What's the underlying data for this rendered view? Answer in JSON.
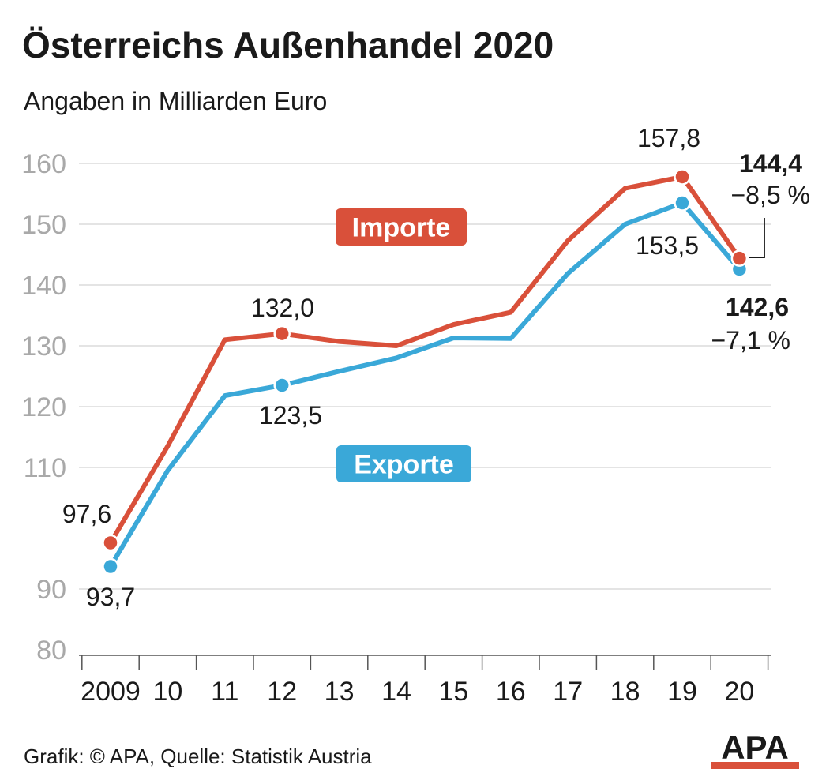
{
  "title": "Österreichs Außenhandel 2020",
  "subtitle": "Angaben in Milliarden Euro",
  "source": "Grafik: © APA, Quelle: Statistik Austria",
  "logo_text": "APA",
  "colors": {
    "imports": "#d9503a",
    "exports": "#3aa8d8",
    "grid": "#dcdcdc",
    "axis": "#555555",
    "tick_text": "#a9a9a9"
  },
  "chart_data": {
    "type": "line",
    "categories": [
      "2009",
      "10",
      "11",
      "12",
      "13",
      "14",
      "15",
      "16",
      "17",
      "18",
      "19",
      "20"
    ],
    "ylim": [
      80,
      160
    ],
    "yticks": [
      80,
      90,
      110,
      120,
      130,
      140,
      150,
      160
    ],
    "grid": true,
    "series": [
      {
        "name": "Importe",
        "color": "#d9503a",
        "values": [
          97.6,
          113.5,
          131.0,
          132.0,
          130.7,
          130.0,
          133.5,
          135.5,
          147.3,
          155.9,
          157.8,
          144.4
        ]
      },
      {
        "name": "Exporte",
        "color": "#3aa8d8",
        "values": [
          93.7,
          109.5,
          121.8,
          123.5,
          125.8,
          128.0,
          131.3,
          131.2,
          141.9,
          150.0,
          153.5,
          142.6
        ]
      }
    ],
    "annotations": {
      "imp_2009": "97,6",
      "exp_2009": "93,7",
      "imp_2012": "132,0",
      "exp_2012": "123,5",
      "imp_2019": "157,8",
      "exp_2019": "153,5",
      "imp_2020": "144,4",
      "imp_2020_change": "−8,5 %",
      "exp_2020": "142,6",
      "exp_2020_change": "−7,1 %"
    }
  }
}
